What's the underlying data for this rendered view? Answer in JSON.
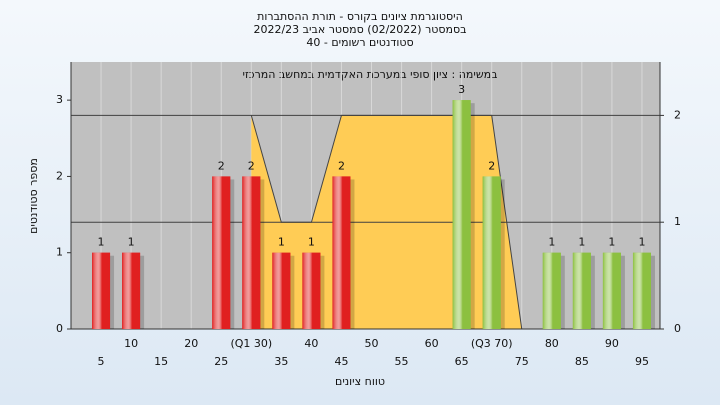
{
  "chart_data": {
    "type": "bar",
    "title": [
      "היסטוגרמת ציונים בקורס - תורת ההסתברות",
      "בסמסטר  (02/2022)  סמסטר אביב 2022/23",
      "סטודנטים רשומים - 40"
    ],
    "annotation": "במשימה : ציון סופי במערכת האקדמית במחשב המרכזי",
    "x_label": "טווח ציונים",
    "y_label": "מספר סטודנטים",
    "x": [
      5,
      10,
      25,
      30,
      35,
      40,
      45,
      65,
      70,
      80,
      85,
      90,
      95
    ],
    "values": [
      1,
      1,
      2,
      2,
      1,
      1,
      2,
      3,
      2,
      1,
      1,
      1,
      1
    ],
    "colors": [
      "#e02020",
      "#e02020",
      "#e02020",
      "#e02020",
      "#e02020",
      "#e02020",
      "#e02020",
      "#8cc040",
      "#8cc040",
      "#8cc040",
      "#8cc040",
      "#8cc040",
      "#8cc040"
    ],
    "area": {
      "type": "area",
      "color": "#ffcc55",
      "x": [
        30,
        35,
        40,
        45,
        70,
        75
      ],
      "values": [
        2,
        1,
        1,
        2,
        2,
        0
      ],
      "axis": "y2"
    },
    "xlim": [
      0,
      98
    ],
    "xticks": [
      5,
      10,
      15,
      20,
      25,
      {
        "value": 30,
        "label": "(Q1 30)"
      },
      35,
      40,
      45,
      50,
      55,
      60,
      65,
      {
        "value": 70,
        "label": "(Q3 70)"
      },
      75,
      80,
      85,
      90,
      95
    ],
    "ylim": [
      0,
      3.5
    ],
    "yticks": [
      0,
      1,
      2,
      3
    ],
    "y2lim": [
      0,
      2.5
    ],
    "y2ticks": [
      0,
      1,
      2
    ],
    "grid": true
  }
}
